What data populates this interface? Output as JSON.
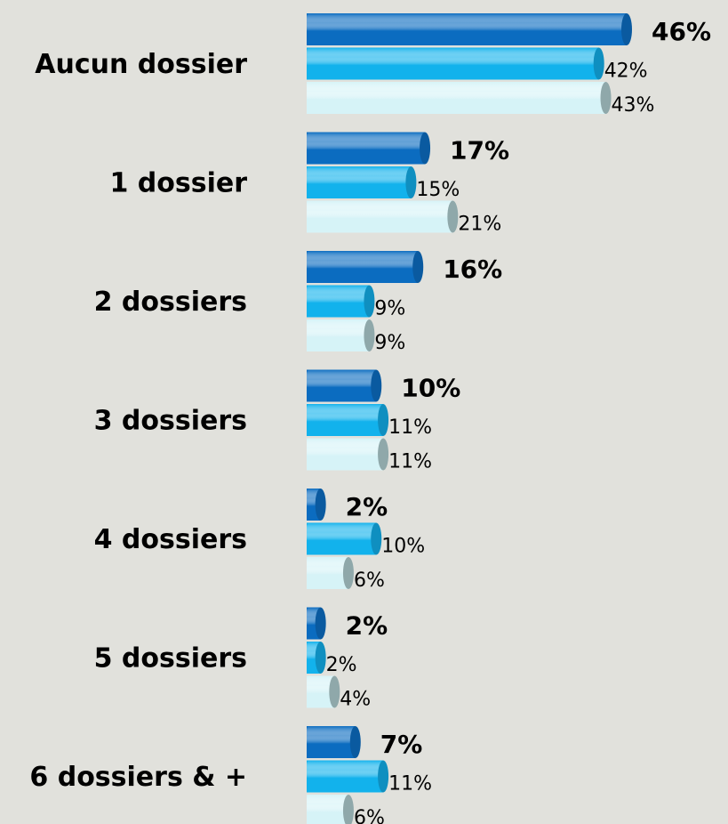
{
  "chart_data": {
    "type": "bar",
    "orientation": "horizontal",
    "categories": [
      "Aucun dossier",
      "1 dossier",
      "2 dossiers",
      "3 dossiers",
      "4 dossiers",
      "5 dossiers",
      "6 dossiers & +"
    ],
    "series": [
      {
        "color": "#0b6cc0",
        "values": [
          46,
          17,
          16,
          10,
          2,
          2,
          7
        ],
        "value_labels": [
          "46%",
          "17%",
          "16%",
          "10%",
          "2%",
          "2%",
          "7%"
        ]
      },
      {
        "color": "#12b2ec",
        "values": [
          42,
          15,
          9,
          11,
          10,
          2,
          11
        ],
        "value_labels": [
          "42%",
          "15%",
          "9%",
          "11%",
          "10%",
          "2%",
          "11%"
        ]
      },
      {
        "color": "#d6f3f7",
        "values": [
          43,
          21,
          9,
          11,
          6,
          4,
          6
        ],
        "value_labels": [
          "43%",
          "21%",
          "9%",
          "11%",
          "6%",
          "4%",
          "6%"
        ]
      }
    ]
  }
}
